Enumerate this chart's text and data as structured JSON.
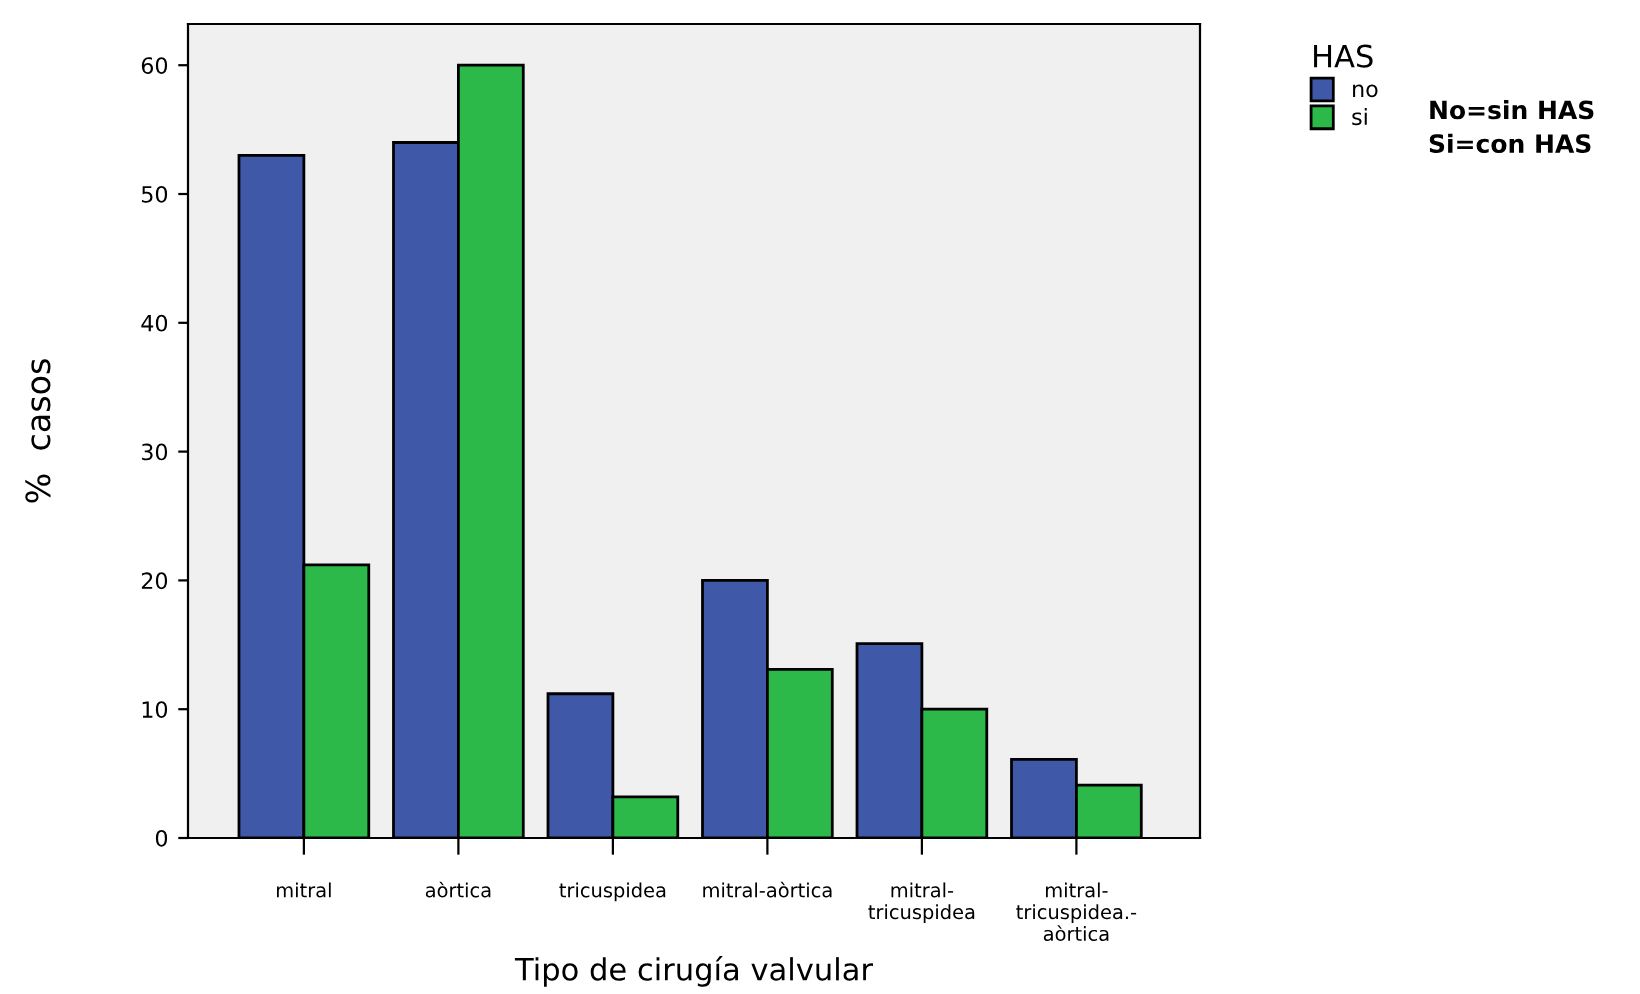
{
  "chart_data": {
    "type": "bar",
    "xlabel": "Tipo de cirugía valvular",
    "ylabel": "%  casos",
    "legend_title": "HAS",
    "categories": [
      "mitral",
      "aòrtica",
      "tricuspidea",
      "mitral-aòrtica",
      "mitral-\ntricuspidea",
      "mitral-\ntricuspidea.-\naòrtica"
    ],
    "series": [
      {
        "name": "no",
        "color": "#3f58a8",
        "values": [
          53,
          54,
          11.2,
          20,
          15.1,
          6.1
        ]
      },
      {
        "name": "si",
        "color": "#2db84a",
        "values": [
          21.2,
          60,
          3.2,
          13.1,
          10,
          4.1
        ]
      }
    ],
    "ylim": [
      0,
      63.2
    ],
    "yticks": [
      0,
      10,
      20,
      30,
      40,
      50,
      60
    ],
    "grid": false,
    "legend": "top right",
    "annotations": [
      "No=sin HAS\nSi=con HAS"
    ]
  }
}
